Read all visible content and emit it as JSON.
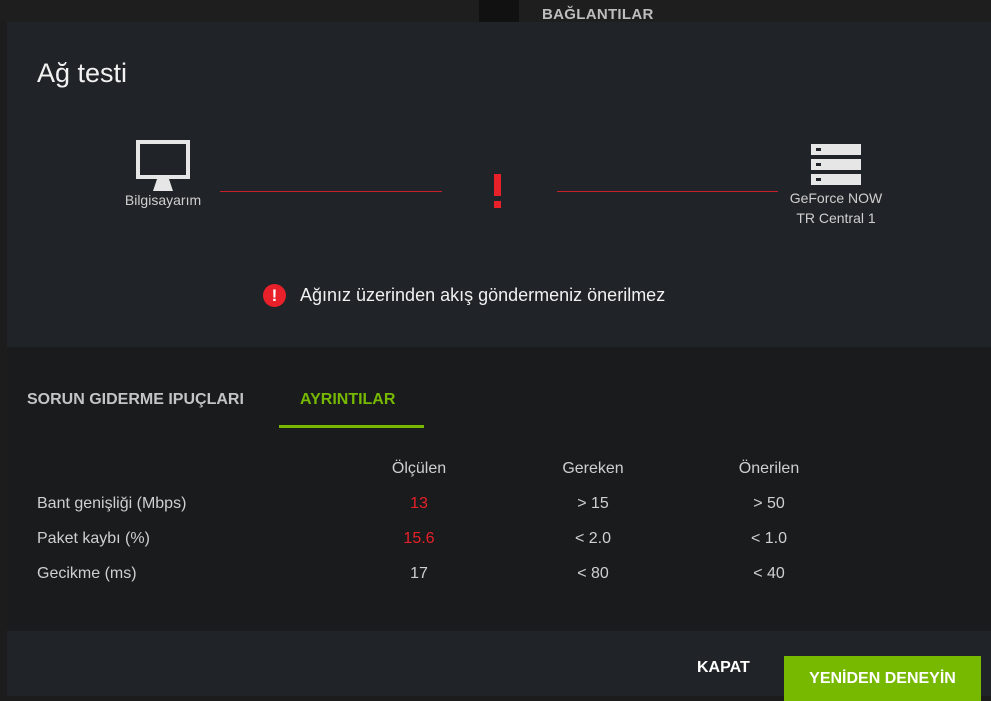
{
  "background": {
    "section_title": "BAĞLANTILAR"
  },
  "dialog": {
    "title": "Ağ testi",
    "client_label": "Bilgisayarım",
    "server_label_line1": "GeForce NOW",
    "server_label_line2": "TR Central 1",
    "status_icon": "exclamation-icon",
    "warning": "Ağınız üzerinden akış göndermeniz önerilmez",
    "tabs": [
      {
        "label": "SORUN GIDERME IPUÇLARI",
        "active": false
      },
      {
        "label": "AYRINTILAR",
        "active": true
      }
    ],
    "table": {
      "headers": [
        "Ölçülen",
        "Gereken",
        "Önerilen"
      ],
      "rows": [
        {
          "label": "Bant genişliği (Mbps)",
          "measured": "13",
          "required": "> 15",
          "recommended": "> 50",
          "fail": true
        },
        {
          "label": "Paket kaybı (%)",
          "measured": "15.6",
          "required": "< 2.0",
          "recommended": "< 1.0",
          "fail": true
        },
        {
          "label": "Gecikme (ms)",
          "measured": "17",
          "required": "< 80",
          "recommended": "< 40",
          "fail": false
        }
      ]
    },
    "buttons": {
      "close": "KAPAT",
      "retry": "YENİDEN DENEYİN"
    }
  },
  "colors": {
    "accent": "#76b900",
    "error": "#e8202a"
  }
}
